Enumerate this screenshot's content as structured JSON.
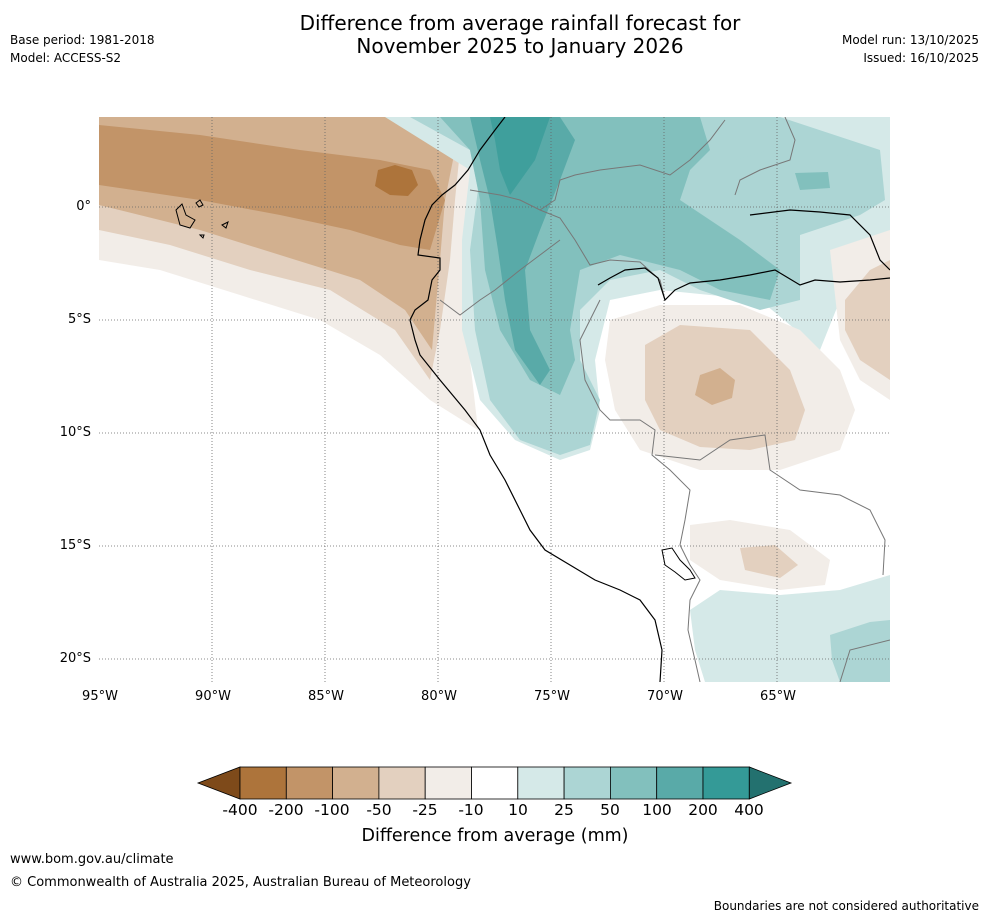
{
  "title": {
    "line1": "Difference from average rainfall forecast for",
    "line2": "November 2025 to January 2026"
  },
  "meta": {
    "base_period": "Base period: 1981-2018",
    "model": "Model: ACCESS-S2",
    "model_run": "Model run: 13/10/2025",
    "issued": "Issued: 16/10/2025"
  },
  "map": {
    "lat_labels": [
      "0°",
      "5°S",
      "10°S",
      "15°S",
      "20°S"
    ],
    "lon_labels": [
      "95°W",
      "90°W",
      "85°W",
      "80°W",
      "75°W",
      "70°W",
      "65°W"
    ]
  },
  "colorbar": {
    "title": "Difference from average (mm)",
    "ticks": [
      "-400",
      "-200",
      "-100",
      "-50",
      "-25",
      "-10",
      "10",
      "25",
      "50",
      "100",
      "200",
      "400"
    ],
    "colors": {
      "lt_m400": "#7e4a1a",
      "m400_m200": "#ad743b",
      "m200_m100": "#c29468",
      "m100_m50": "#d2b08f",
      "m50_m25": "#e3d0bf",
      "m25_m10": "#f2ede8",
      "m10_10": "#ffffff",
      "10_25": "#d5e9e8",
      "25_50": "#acd5d4",
      "50_100": "#82c0bd",
      "100_200": "#59aaa8",
      "200_400": "#349a97",
      "gt_400": "#23716f"
    }
  },
  "footer": {
    "url": "www.bom.gov.au/climate",
    "copyright": "© Commonwealth of Australia 2025, Australian Bureau of Meteorology",
    "disclaimer": "Boundaries are not considered authoritative"
  }
}
